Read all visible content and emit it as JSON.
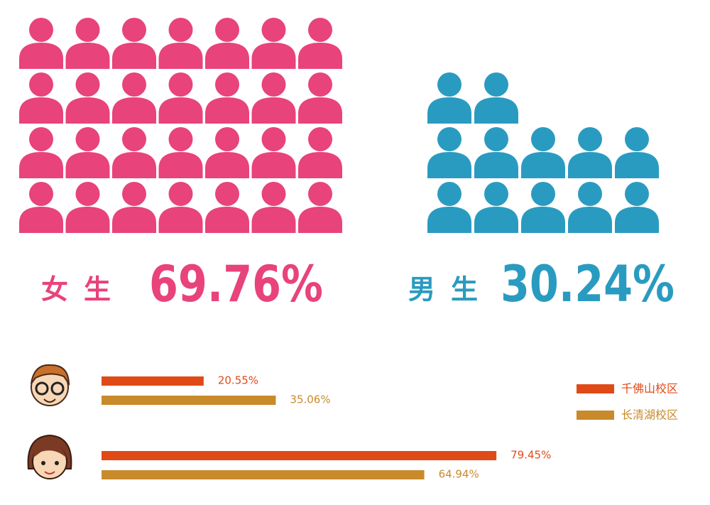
{
  "chart_data": [
    {
      "type": "pictogram",
      "categories": [
        "女生",
        "男生"
      ],
      "values": [
        69.76,
        30.24
      ],
      "value_labels": [
        "69.76%",
        "30.24%"
      ],
      "colors": [
        "#e8437a",
        "#2a9bc0"
      ]
    },
    {
      "type": "bar",
      "orientation": "horizontal",
      "categories": [
        null,
        null
      ],
      "series": [
        {
          "name": "千佛山校区",
          "color": "#e04a17",
          "values": [
            20.55,
            79.45
          ],
          "value_labels": [
            "20.55%",
            "79.45%"
          ]
        },
        {
          "name": "长清湖校区",
          "color": "#c98a2c",
          "values": [
            35.06,
            64.94
          ],
          "value_labels": [
            "35.06%",
            "64.94%"
          ]
        }
      ],
      "xlim": [
        0,
        100
      ]
    }
  ]
}
